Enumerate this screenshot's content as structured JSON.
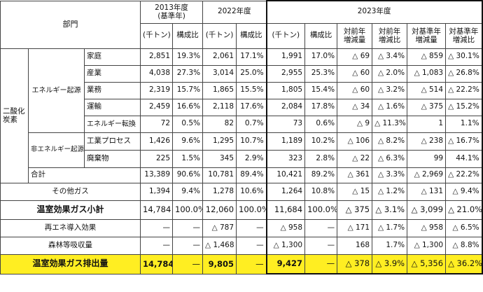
{
  "header": {
    "category": "部門",
    "years": [
      "2013年度\n(基準年)",
      "2022年度",
      "2023年度"
    ],
    "y2013_l1": "2013年度",
    "y2013_l2": "(基準年)",
    "y2022": "2022年度",
    "y2023": "2023年度",
    "unit": "(千トン)",
    "ratio": "構成比",
    "yoy_amt_l1": "対前年",
    "yoy_amt_l2": "増減量",
    "yoy_rate_l1": "対前年",
    "yoy_rate_l2": "増減比",
    "base_amt_l1": "対基準年",
    "base_amt_l2": "増減量",
    "base_rate_l1": "対基準年",
    "base_rate_l2": "増減比"
  },
  "labels": {
    "co2": "二酸化\n炭素",
    "co2_l1": "二酸化",
    "co2_l2": "炭素",
    "energy_origin": "エネルギー起源",
    "non_energy_origin": "非エネルギー起源",
    "subtotal_co2": "合計",
    "other_gas": "その他ガス",
    "ghg_subtotal": "温室効果ガス小計",
    "renew": "再エネ導入効果",
    "forest": "森林等吸収量",
    "ghg_total": "温室効果ガス排出量"
  },
  "rows": [
    {
      "name": "家庭",
      "v2013": "2,851",
      "r2013": "19.3%",
      "v2022": "2,061",
      "r2022": "17.1%",
      "v2023": "1,991",
      "r2023": "17.0%",
      "yoy_amt": "△ 69",
      "yoy_rate": "△ 3.4%",
      "base_amt": "△ 859",
      "base_rate": "△ 30.1%"
    },
    {
      "name": "産業",
      "v2013": "4,038",
      "r2013": "27.3%",
      "v2022": "3,014",
      "r2022": "25.0%",
      "v2023": "2,955",
      "r2023": "25.3%",
      "yoy_amt": "△ 60",
      "yoy_rate": "△ 2.0%",
      "base_amt": "△ 1,083",
      "base_rate": "△ 26.8%"
    },
    {
      "name": "業務",
      "v2013": "2,319",
      "r2013": "15.7%",
      "v2022": "1,865",
      "r2022": "15.5%",
      "v2023": "1,805",
      "r2023": "15.4%",
      "yoy_amt": "△ 60",
      "yoy_rate": "△ 3.2%",
      "base_amt": "△ 514",
      "base_rate": "△ 22.2%"
    },
    {
      "name": "運輸",
      "v2013": "2,459",
      "r2013": "16.6%",
      "v2022": "2,118",
      "r2022": "17.6%",
      "v2023": "2,084",
      "r2023": "17.8%",
      "yoy_amt": "△ 34",
      "yoy_rate": "△ 1.6%",
      "base_amt": "△ 375",
      "base_rate": "△ 15.2%"
    },
    {
      "name": "エネルギー転換",
      "v2013": "72",
      "r2013": "0.5%",
      "v2022": "82",
      "r2022": "0.7%",
      "v2023": "73",
      "r2023": "0.6%",
      "yoy_amt": "△ 9",
      "yoy_rate": "△ 11.3%",
      "base_amt": "1",
      "base_rate": "1.1%"
    },
    {
      "name": "工業プロセス",
      "v2013": "1,426",
      "r2013": "9.6%",
      "v2022": "1,295",
      "r2022": "10.7%",
      "v2023": "1,189",
      "r2023": "10.2%",
      "yoy_amt": "△ 106",
      "yoy_rate": "△ 8.2%",
      "base_amt": "△ 238",
      "base_rate": "△ 16.7%"
    },
    {
      "name": "廃棄物",
      "v2013": "225",
      "r2013": "1.5%",
      "v2022": "345",
      "r2022": "2.9%",
      "v2023": "323",
      "r2023": "2.8%",
      "yoy_amt": "△ 22",
      "yoy_rate": "△ 6.3%",
      "base_amt": "99",
      "base_rate": "44.1%"
    }
  ],
  "co2_total": {
    "v2013": "13,389",
    "r2013": "90.6%",
    "v2022": "10,781",
    "r2022": "89.4%",
    "v2023": "10,421",
    "r2023": "89.2%",
    "yoy_amt": "△ 361",
    "yoy_rate": "△ 3.3%",
    "base_amt": "△ 2,969",
    "base_rate": "△ 22.2%"
  },
  "other_gas": {
    "v2013": "1,394",
    "r2013": "9.4%",
    "v2022": "1,278",
    "r2022": "10.6%",
    "v2023": "1,264",
    "r2023": "10.8%",
    "yoy_amt": "△ 15",
    "yoy_rate": "△ 1.2%",
    "base_amt": "△ 131",
    "base_rate": "△ 9.4%"
  },
  "ghg_subtotal": {
    "v2013": "14,784",
    "r2013": "100.0%",
    "v2022": "12,060",
    "r2022": "100.0%",
    "v2023": "11,684",
    "r2023": "100.0%",
    "yoy_amt": "△ 375",
    "yoy_rate": "△ 3.1%",
    "base_amt": "△ 3,099",
    "base_rate": "△ 21.0%"
  },
  "renew": {
    "v2013": "—",
    "r2013": "—",
    "v2022": "△ 787",
    "r2022": "—",
    "v2023": "△ 958",
    "r2023": "—",
    "yoy_amt": "△ 171",
    "yoy_rate": "△ 1.7%",
    "base_amt": "△ 958",
    "base_rate": "△ 6.5%"
  },
  "forest": {
    "v2013": "—",
    "r2013": "—",
    "v2022": "△ 1,468",
    "r2022": "—",
    "v2023": "△ 1,300",
    "r2023": "—",
    "yoy_amt": "168",
    "yoy_rate": "1.7%",
    "base_amt": "△ 1,300",
    "base_rate": "△ 8.8%"
  },
  "ghg_total": {
    "v2013": "14,784",
    "r2013": "—",
    "v2022": "9,805",
    "r2022": "—",
    "v2023": "9,427",
    "r2023": "—",
    "yoy_amt": "△ 378",
    "yoy_rate": "△ 3.9%",
    "base_amt": "△ 5,356",
    "base_rate": "△ 36.2%"
  }
}
